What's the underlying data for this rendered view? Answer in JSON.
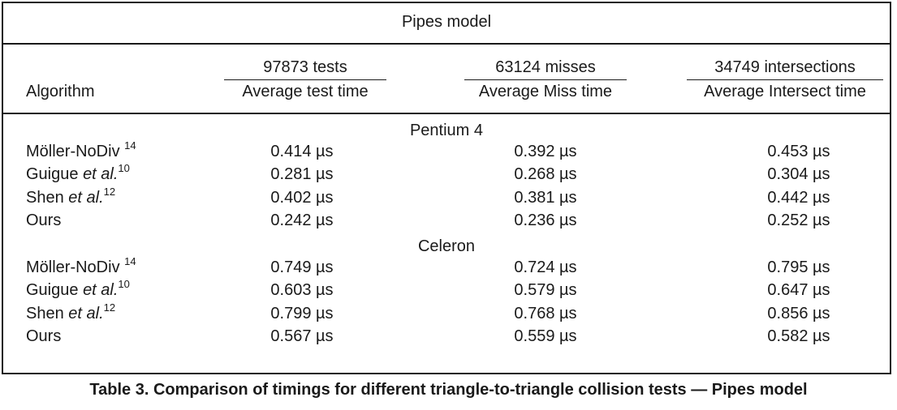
{
  "table": {
    "title": "Pipes model",
    "columns": [
      {
        "top": "97873 tests",
        "bottom": "Average test time"
      },
      {
        "top": "63124 misses",
        "bottom": "Average Miss time"
      },
      {
        "top": "34749 intersections",
        "bottom": "Average Intersect time"
      }
    ],
    "algorithm_header": "Algorithm",
    "sections": [
      {
        "label": "Pentium 4",
        "rows": [
          {
            "name": "Möller-NoDiv",
            "etal": "",
            "ref": "14",
            "values": [
              "0.414 µs",
              "0.392 µs",
              "0.453 µs"
            ]
          },
          {
            "name": "Guigue",
            "etal": "et al.",
            "ref": "10",
            "values": [
              "0.281 µs",
              "0.268 µs",
              "0.304 µs"
            ]
          },
          {
            "name": "Shen",
            "etal": "et al.",
            "ref": "12",
            "values": [
              "0.402 µs",
              "0.381 µs",
              "0.442 µs"
            ]
          },
          {
            "name": "Ours",
            "etal": "",
            "ref": "",
            "values": [
              "0.242 µs",
              "0.236 µs",
              "0.252 µs"
            ]
          }
        ]
      },
      {
        "label": "Celeron",
        "rows": [
          {
            "name": "Möller-NoDiv",
            "etal": "",
            "ref": "14",
            "values": [
              "0.749 µs",
              "0.724 µs",
              "0.795 µs"
            ]
          },
          {
            "name": "Guigue",
            "etal": "et al.",
            "ref": "10",
            "values": [
              "0.603 µs",
              "0.579 µs",
              "0.647 µs"
            ]
          },
          {
            "name": "Shen",
            "etal": "et al.",
            "ref": "12",
            "values": [
              "0.799 µs",
              "0.768 µs",
              "0.856 µs"
            ]
          },
          {
            "name": "Ours",
            "etal": "",
            "ref": "",
            "values": [
              "0.567 µs",
              "0.559 µs",
              "0.582 µs"
            ]
          }
        ]
      }
    ]
  },
  "caption": "Table 3.  Comparison of timings for different triangle-to-triangle collision tests — Pipes model"
}
